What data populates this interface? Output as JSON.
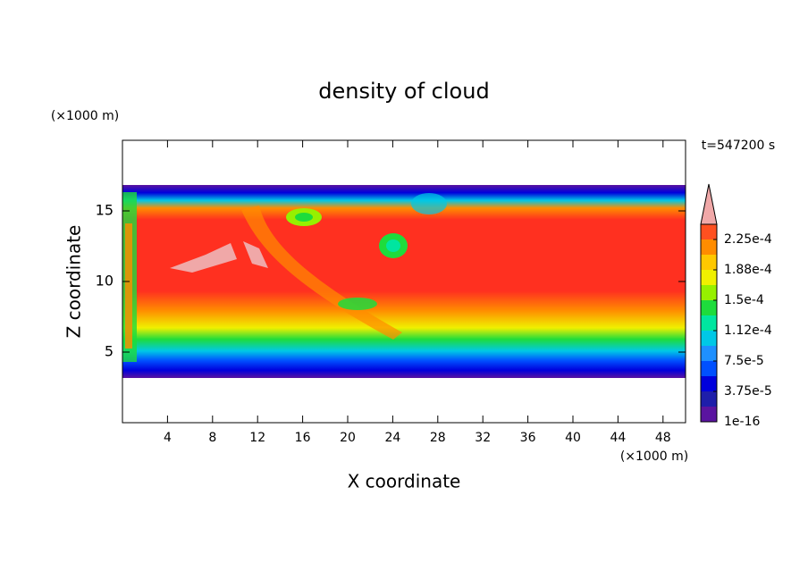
{
  "chart_data": {
    "type": "contour",
    "title": "density of cloud",
    "x_label": "X coordinate",
    "y_label": "Z coordinate",
    "x_unit": "(×1000 m)",
    "y_unit": "(×1000 m)",
    "annotation": "t=547200 s",
    "xlim": [
      0,
      50
    ],
    "ylim": [
      0,
      20
    ],
    "xticks": [
      4,
      8,
      12,
      16,
      20,
      24,
      28,
      32,
      36,
      40,
      44,
      48
    ],
    "yticks": [
      5,
      10,
      15
    ],
    "colorbar": {
      "clim": [
        1e-16,
        0.00024375
      ],
      "levels": [
        1e-16,
        1.875e-05,
        3.75e-05,
        5.625e-05,
        7.5e-05,
        9.375e-05,
        0.0001125,
        0.00013125,
        0.00015,
        0.00016875,
        0.0001875,
        0.00020625,
        0.000225
      ],
      "colors": [
        "#5a14a0",
        "#1e1eaa",
        "#0000dc",
        "#0050ff",
        "#1e90ff",
        "#00c8e6",
        "#00e6a0",
        "#1edc3c",
        "#96f000",
        "#f0f000",
        "#ffc800",
        "#ff8c00",
        "#ff5020"
      ],
      "overflow_color": "#f0a8a8",
      "ticks": [
        1e-16,
        {
          "value": 3.75e-05,
          "label": "3.75e-5"
        },
        {
          "value": 7.5e-05,
          "label": "7.5e-5"
        },
        {
          "value": 0.0001125,
          "label": "1.12e-4"
        },
        {
          "value": 0.00015,
          "label": "1.5e-4"
        },
        {
          "value": 0.0001875,
          "label": "1.88e-4"
        },
        {
          "value": 0.000225,
          "label": "2.25e-4"
        }
      ]
    }
  }
}
